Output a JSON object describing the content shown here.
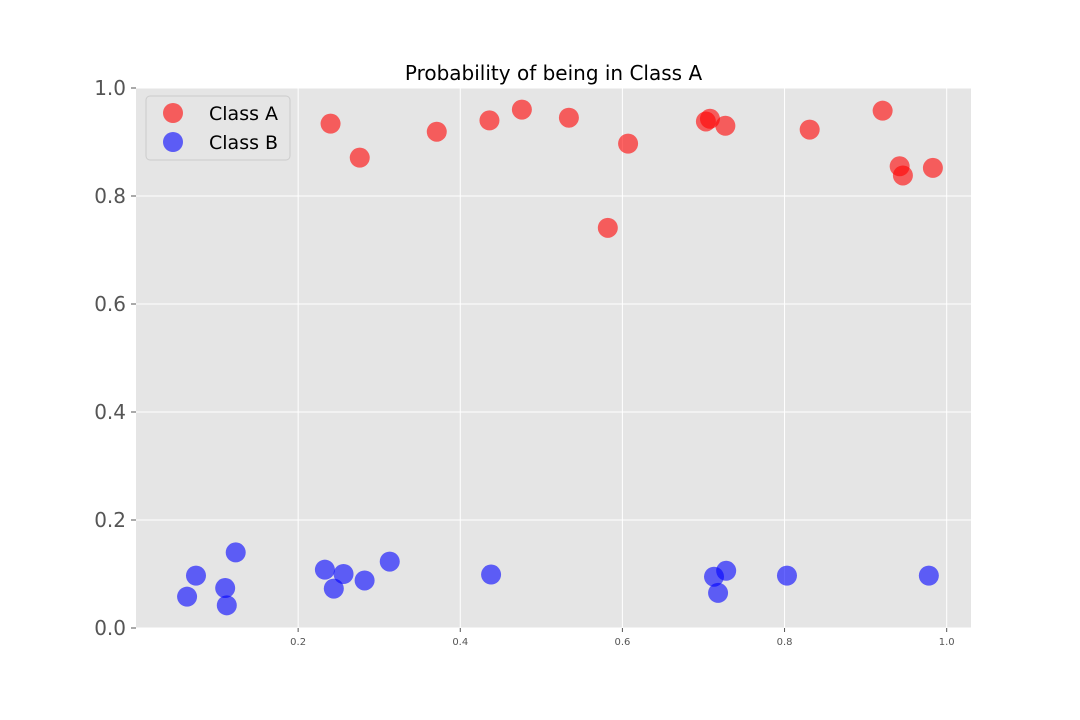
{
  "chart_data": {
    "type": "scatter",
    "title": "Probability of being in Class A",
    "xlabel": "",
    "ylabel": "",
    "xlim": [
      0.0,
      1.03
    ],
    "ylim": [
      0.0,
      1.0
    ],
    "x_ticks": [
      0.2,
      0.4,
      0.6,
      0.8,
      1.0
    ],
    "x_tick_labels": [
      "0.2",
      "0.4",
      "0.6",
      "0.8",
      "1.0"
    ],
    "y_ticks": [
      0.0,
      0.2,
      0.4,
      0.6,
      0.8,
      1.0
    ],
    "y_tick_labels": [
      "0.0",
      "0.2",
      "0.4",
      "0.6",
      "0.8",
      "1.0"
    ],
    "grid": true,
    "legend_position": "top-left",
    "series": [
      {
        "name": "Class A",
        "color": "#ff0000",
        "points": [
          [
            0.24,
            0.934
          ],
          [
            0.276,
            0.871
          ],
          [
            0.371,
            0.919
          ],
          [
            0.436,
            0.94
          ],
          [
            0.476,
            0.96
          ],
          [
            0.534,
            0.945
          ],
          [
            0.582,
            0.741
          ],
          [
            0.607,
            0.897
          ],
          [
            0.703,
            0.938
          ],
          [
            0.708,
            0.943
          ],
          [
            0.727,
            0.93
          ],
          [
            0.831,
            0.923
          ],
          [
            0.921,
            0.958
          ],
          [
            0.942,
            0.855
          ],
          [
            0.946,
            0.838
          ],
          [
            0.983,
            0.852
          ]
        ]
      },
      {
        "name": "Class B",
        "color": "#0000ff",
        "points": [
          [
            0.063,
            0.058
          ],
          [
            0.074,
            0.097
          ],
          [
            0.11,
            0.074
          ],
          [
            0.112,
            0.042
          ],
          [
            0.123,
            0.14
          ],
          [
            0.233,
            0.108
          ],
          [
            0.244,
            0.073
          ],
          [
            0.256,
            0.1
          ],
          [
            0.282,
            0.088
          ],
          [
            0.313,
            0.123
          ],
          [
            0.438,
            0.099
          ],
          [
            0.713,
            0.095
          ],
          [
            0.718,
            0.065
          ],
          [
            0.728,
            0.106
          ],
          [
            0.803,
            0.097
          ],
          [
            0.978,
            0.097
          ]
        ]
      }
    ]
  }
}
